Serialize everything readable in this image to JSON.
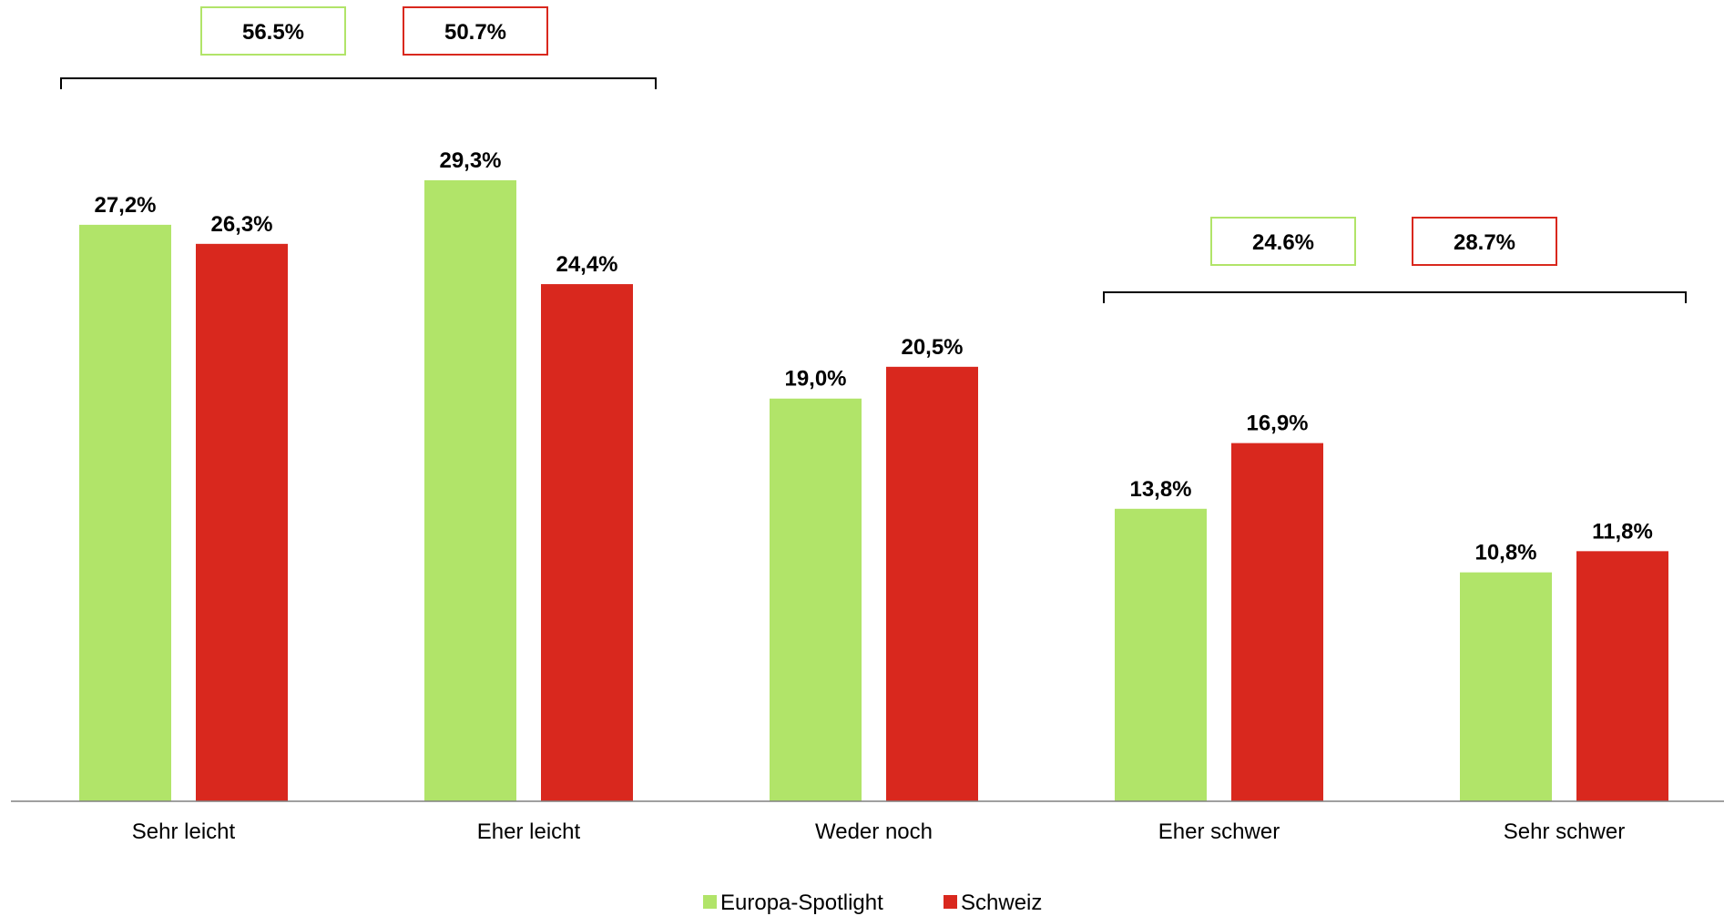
{
  "chart_data": {
    "type": "bar",
    "categories": [
      "Sehr leicht",
      "Eher leicht",
      "Weder noch",
      "Eher schwer",
      "Sehr schwer"
    ],
    "series": [
      {
        "name": "Europa-Spotlight",
        "color": "#b1e469",
        "values": [
          27.2,
          29.3,
          19.0,
          13.8,
          10.8
        ],
        "labels": [
          "27,2%",
          "29,3%",
          "19,0%",
          "13,8%",
          "10,8%"
        ]
      },
      {
        "name": "Schweiz",
        "color": "#d9281e",
        "values": [
          26.3,
          24.4,
          20.5,
          16.9,
          11.8
        ],
        "labels": [
          "26,3%",
          "24,4%",
          "20,5%",
          "16,9%",
          "11,8%"
        ]
      }
    ],
    "ylim": [
      0,
      30
    ],
    "grid": false,
    "legend": "bottom-center",
    "annotations": [
      {
        "group": "leicht",
        "categories": [
          "Sehr leicht",
          "Eher leicht"
        ],
        "boxes": [
          {
            "series": "Europa-Spotlight",
            "text": "56.5%"
          },
          {
            "series": "Schweiz",
            "text": "50.7%"
          }
        ]
      },
      {
        "group": "schwer",
        "categories": [
          "Eher schwer",
          "Sehr schwer"
        ],
        "boxes": [
          {
            "series": "Europa-Spotlight",
            "text": "24.6%"
          },
          {
            "series": "Schweiz",
            "text": "28.7%"
          }
        ]
      }
    ]
  }
}
